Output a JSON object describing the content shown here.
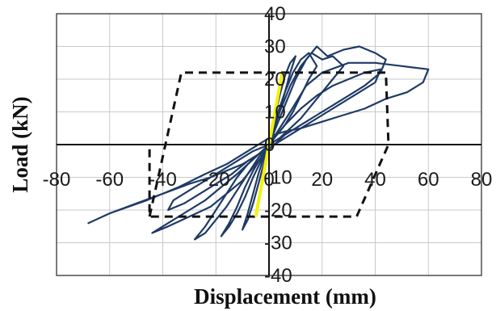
{
  "chart_data": {
    "type": "line",
    "title": "",
    "xlabel": "Displacement  (mm)",
    "ylabel": "Load  (kN)",
    "xlim": [
      -80,
      80
    ],
    "ylim": [
      -40,
      40
    ],
    "x_ticks": [
      -80,
      -60,
      -40,
      -20,
      0,
      20,
      40,
      60,
      80
    ],
    "y_ticks": [
      -40,
      -30,
      -20,
      -10,
      0,
      10,
      20,
      30,
      40
    ],
    "x_tick_labels": [
      "-80",
      "-60",
      "-40",
      "-20",
      "0",
      "20",
      "40",
      "60",
      "80"
    ],
    "y_tick_labels": [
      "-40",
      "-30",
      "-20",
      "-10",
      "0",
      "10",
      "20",
      "30",
      "40"
    ],
    "grid": true,
    "legend": "none",
    "colors": {
      "hysteresis": "#1f3a66",
      "envelope": "#111111",
      "initial_stiffness": "#f2f20a",
      "grid": "#c9c9c9"
    },
    "series": [
      {
        "style": "solid",
        "color": "#1f3a66",
        "x": [
          0,
          8,
          14,
          20,
          30,
          40,
          50,
          60,
          58,
          52,
          44,
          36,
          28,
          20,
          12,
          6,
          2,
          -2,
          -6,
          -10,
          -16,
          -24,
          -34,
          -46,
          -60,
          -68,
          -60,
          -50,
          -40,
          -30,
          -22,
          -16,
          -10,
          -6,
          -2,
          0
        ],
        "y": [
          0,
          10,
          18,
          22,
          25,
          25,
          24,
          23,
          19,
          16,
          14,
          11,
          9,
          7,
          5,
          4,
          3,
          1,
          -1,
          -3,
          -6,
          -9,
          -13,
          -17,
          -21,
          -24,
          -21,
          -18,
          -15,
          -12,
          -10,
          -8,
          -6,
          -4,
          -2,
          0
        ]
      },
      {
        "style": "solid",
        "color": "#1f3a66",
        "x": [
          0,
          6,
          10,
          14,
          18,
          22,
          28,
          34,
          40,
          44,
          42,
          36,
          30,
          24,
          18,
          12,
          6,
          2,
          -2,
          -6,
          -10,
          -16,
          -22,
          -30,
          -38,
          -44,
          -38,
          -30,
          -24,
          -18,
          -12,
          -8,
          -4,
          0
        ],
        "y": [
          0,
          12,
          20,
          26,
          30,
          27,
          29,
          30,
          28,
          26,
          22,
          18,
          15,
          12,
          9,
          6,
          3,
          0,
          -3,
          -7,
          -11,
          -15,
          -19,
          -22,
          -25,
          -27,
          -24,
          -20,
          -17,
          -13,
          -9,
          -6,
          -3,
          0
        ]
      },
      {
        "style": "solid",
        "color": "#1f3a66",
        "x": [
          0,
          4,
          8,
          12,
          16,
          20,
          24,
          28,
          24,
          20,
          16,
          12,
          8,
          4,
          0,
          -4,
          -8,
          -12,
          -16,
          -20,
          -24,
          -28,
          -24,
          -20,
          -16,
          -12,
          -8,
          -4,
          0
        ],
        "y": [
          0,
          10,
          18,
          24,
          28,
          26,
          27,
          24,
          20,
          16,
          12,
          8,
          5,
          2,
          0,
          -4,
          -9,
          -14,
          -19,
          -23,
          -27,
          -29,
          -25,
          -20,
          -15,
          -10,
          -6,
          -3,
          0
        ]
      },
      {
        "style": "solid",
        "color": "#1f3a66",
        "x": [
          0,
          3,
          6,
          9,
          12,
          15,
          18,
          15,
          12,
          9,
          6,
          3,
          0,
          -3,
          -6,
          -9,
          -12,
          -15,
          -18,
          -15,
          -12,
          -9,
          -6,
          -3,
          0
        ],
        "y": [
          0,
          9,
          16,
          22,
          26,
          28,
          24,
          20,
          15,
          10,
          6,
          3,
          0,
          -5,
          -10,
          -16,
          -21,
          -25,
          -28,
          -24,
          -19,
          -13,
          -8,
          -4,
          0
        ]
      },
      {
        "style": "solid",
        "color": "#1f3a66",
        "x": [
          0,
          2,
          4,
          6,
          8,
          10,
          8,
          6,
          4,
          2,
          0,
          -2,
          -4,
          -6,
          -8,
          -10,
          -8,
          -6,
          -4,
          -2,
          0
        ],
        "y": [
          0,
          8,
          15,
          21,
          25,
          27,
          22,
          16,
          10,
          5,
          0,
          -6,
          -12,
          -18,
          -23,
          -26,
          -21,
          -15,
          -9,
          -4,
          0
        ]
      },
      {
        "style": "solid",
        "color": "#1f3a66",
        "x": [
          0,
          6,
          12,
          18,
          24,
          30,
          36,
          42,
          40,
          34,
          28,
          22,
          16,
          10,
          4,
          -2,
          -8,
          -14,
          -20,
          -26,
          -32,
          -38,
          -36,
          -30,
          -24,
          -18,
          -12,
          -6,
          0
        ],
        "y": [
          0,
          6,
          11,
          15,
          18,
          20,
          22,
          23,
          19,
          16,
          13,
          10,
          7,
          4,
          1,
          -2,
          -5,
          -9,
          -12,
          -15,
          -18,
          -20,
          -17,
          -14,
          -11,
          -8,
          -5,
          -2,
          0
        ]
      },
      {
        "style": "dashed",
        "color": "#111111",
        "x": [
          -45,
          -33,
          44,
          45,
          33,
          -45,
          -45
        ],
        "y": [
          -22,
          22,
          22,
          0,
          -22,
          -22,
          0
        ]
      },
      {
        "style": "solid",
        "color": "#f2f20a",
        "x": [
          -5,
          5
        ],
        "y": [
          -22,
          22
        ]
      }
    ]
  }
}
